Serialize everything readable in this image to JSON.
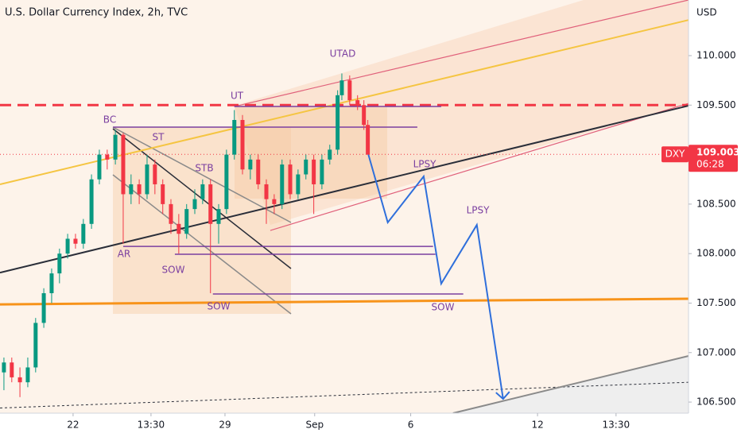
{
  "chart_data": {
    "type": "candlestick",
    "title": "U.S. Dollar Currency Index, 2h, TVC",
    "currency": "USD",
    "up_color": "#089981",
    "down_color": "#f23645",
    "xlim": [
      0,
      228
    ],
    "ylim": [
      106.388,
      110.562
    ],
    "xticks": [
      {
        "value": 24.2,
        "label": "22"
      },
      {
        "value": 50,
        "label": "13:30"
      },
      {
        "value": 74.5,
        "label": "29"
      },
      {
        "value": 104.2,
        "label": "Sep"
      },
      {
        "value": 136,
        "label": "6"
      },
      {
        "value": 178,
        "label": "12"
      },
      {
        "value": 204,
        "label": "13:30"
      }
    ],
    "yticks": [
      {
        "value": 110,
        "label": "110.000"
      },
      {
        "value": 109.5,
        "label": "109.500"
      },
      {
        "value": 109,
        "label": "109.000"
      },
      {
        "value": 108.5,
        "label": "108.500"
      },
      {
        "value": 108,
        "label": "108.000"
      },
      {
        "value": 107.5,
        "label": "107.500"
      },
      {
        "value": 107,
        "label": "107.000"
      },
      {
        "value": 106.5,
        "label": "106.500"
      }
    ],
    "last_price": {
      "symbol": "DXY",
      "value": 109.003,
      "label": "109.003",
      "countdown": "06:28",
      "color": "#f23645"
    },
    "candles": [
      [
        1.3,
        106.8,
        106.95,
        106.62,
        106.9
      ],
      [
        3.9,
        106.9,
        106.95,
        106.7,
        106.75
      ],
      [
        6.6,
        106.75,
        106.85,
        106.55,
        106.7
      ],
      [
        9.2,
        106.7,
        106.95,
        106.65,
        106.85
      ],
      [
        11.8,
        106.85,
        107.35,
        106.8,
        107.3
      ],
      [
        14.5,
        107.3,
        107.65,
        107.25,
        107.6
      ],
      [
        17.1,
        107.6,
        107.85,
        107.5,
        107.8
      ],
      [
        19.7,
        107.8,
        108.05,
        107.7,
        108.0
      ],
      [
        22.4,
        108.0,
        108.2,
        107.95,
        108.15
      ],
      [
        25.0,
        108.15,
        108.2,
        108.05,
        108.1
      ],
      [
        27.6,
        108.1,
        108.35,
        108.05,
        108.3
      ],
      [
        30.3,
        108.3,
        108.8,
        108.25,
        108.75
      ],
      [
        32.9,
        108.75,
        109.05,
        108.7,
        109.0
      ],
      [
        35.5,
        109.0,
        109.05,
        108.85,
        108.95
      ],
      [
        38.2,
        108.95,
        109.25,
        108.9,
        109.2
      ],
      [
        40.8,
        109.2,
        109.22,
        108.1,
        108.6
      ],
      [
        43.4,
        108.6,
        108.8,
        108.5,
        108.7
      ],
      [
        46.1,
        108.7,
        108.75,
        108.5,
        108.6
      ],
      [
        48.7,
        108.6,
        109.0,
        108.55,
        108.9
      ],
      [
        51.3,
        108.9,
        108.95,
        108.6,
        108.7
      ],
      [
        53.9,
        108.7,
        108.75,
        108.4,
        108.5
      ],
      [
        56.6,
        108.5,
        108.55,
        108.2,
        108.3
      ],
      [
        59.2,
        108.3,
        108.4,
        108.0,
        108.2
      ],
      [
        61.8,
        108.2,
        108.5,
        108.15,
        108.45
      ],
      [
        64.5,
        108.45,
        108.65,
        108.4,
        108.55
      ],
      [
        67.1,
        108.55,
        108.75,
        108.5,
        108.7
      ],
      [
        69.7,
        108.7,
        108.75,
        107.6,
        108.3
      ],
      [
        72.4,
        108.3,
        108.5,
        108.1,
        108.45
      ],
      [
        75.0,
        108.45,
        109.05,
        108.4,
        109.0
      ],
      [
        77.6,
        109.0,
        109.45,
        108.95,
        109.35
      ],
      [
        80.3,
        109.35,
        109.4,
        108.8,
        108.85
      ],
      [
        82.9,
        108.85,
        109.0,
        108.75,
        108.95
      ],
      [
        85.5,
        108.95,
        109.0,
        108.65,
        108.7
      ],
      [
        88.2,
        108.7,
        108.75,
        108.3,
        108.55
      ],
      [
        90.8,
        108.55,
        108.6,
        108.4,
        108.5
      ],
      [
        93.4,
        108.5,
        108.95,
        108.45,
        108.9
      ],
      [
        96.1,
        108.9,
        108.95,
        108.55,
        108.6
      ],
      [
        98.7,
        108.6,
        108.85,
        108.55,
        108.8
      ],
      [
        101.3,
        108.8,
        109.0,
        108.75,
        108.95
      ],
      [
        103.9,
        108.95,
        109.0,
        108.4,
        108.7
      ],
      [
        106.6,
        108.7,
        109.0,
        108.65,
        108.95
      ],
      [
        109.2,
        108.95,
        109.1,
        108.9,
        109.05
      ],
      [
        111.8,
        109.05,
        109.65,
        109.0,
        109.6
      ],
      [
        113.2,
        109.6,
        109.82,
        109.55,
        109.75
      ],
      [
        115.8,
        109.75,
        109.8,
        109.5,
        109.55
      ],
      [
        118.4,
        109.55,
        109.6,
        109.45,
        109.5
      ],
      [
        120.5,
        109.5,
        109.55,
        109.25,
        109.3
      ],
      [
        121.8,
        109.3,
        109.35,
        109.0,
        109.0
      ]
    ],
    "drawings": [
      {
        "points": [
          [
            0,
            108.7
          ],
          [
            228,
            110.36
          ]
        ],
        "color": "#f5c542",
        "width": 2,
        "style": "solid"
      },
      {
        "points": [
          [
            77.6,
            109.486
          ],
          [
            228,
            110.562
          ]
        ],
        "color": "#e0607a",
        "width": 1.2,
        "style": "solid"
      },
      {
        "points": [
          [
            89.5,
            108.234
          ],
          [
            228,
            109.518
          ]
        ],
        "color": "#e0607a",
        "width": 1.2,
        "style": "solid"
      },
      {
        "points": [
          [
            0,
            109.5
          ],
          [
            228,
            109.5
          ]
        ],
        "color": "#f23645",
        "width": 3,
        "style": "dashed"
      },
      {
        "points": [
          [
            0,
            107.487
          ],
          [
            228,
            107.544
          ]
        ],
        "color": "#f7931a",
        "width": 3,
        "style": "solid"
      },
      {
        "points": [
          [
            0,
            107.808
          ],
          [
            228,
            109.494
          ]
        ],
        "color": "#2a2e39",
        "width": 2,
        "style": "solid"
      },
      {
        "points": [
          [
            0,
            106.44
          ],
          [
            228,
            106.7
          ]
        ],
        "color": "#2a2e39",
        "width": 1,
        "style": "dotted"
      },
      {
        "points": [
          [
            150,
            106.388
          ],
          [
            228,
            106.966
          ]
        ],
        "color": "#8a8a8a",
        "width": 2,
        "style": "solid"
      },
      {
        "points": [
          [
            37.4,
            109.278
          ],
          [
            138.2,
            109.278
          ]
        ],
        "color": "#7b3fa0",
        "width": 1.5,
        "style": "solid"
      },
      {
        "points": [
          [
            77.6,
            109.486
          ],
          [
            146.1,
            109.486
          ]
        ],
        "color": "#7b3fa0",
        "width": 1.5,
        "style": "solid"
      },
      {
        "points": [
          [
            40.8,
            108.073
          ],
          [
            143.4,
            108.073
          ]
        ],
        "color": "#7b3fa0",
        "width": 1.5,
        "style": "solid"
      },
      {
        "points": [
          [
            57.9,
            107.993
          ],
          [
            144.2,
            107.993
          ]
        ],
        "color": "#7b3fa0",
        "width": 1.5,
        "style": "solid"
      },
      {
        "points": [
          [
            70.5,
            107.592
          ],
          [
            153.4,
            107.592
          ]
        ],
        "color": "#7b3fa0",
        "width": 1.5,
        "style": "solid"
      },
      {
        "points": [
          [
            121.8,
            109.021
          ],
          [
            128.4,
            108.315
          ],
          [
            140.3,
            108.78
          ],
          [
            146.1,
            107.696
          ],
          [
            157.9,
            108.29
          ],
          [
            166.6,
            106.532
          ]
        ],
        "color": "#2f6fdb",
        "width": 2,
        "style": "solid"
      }
    ],
    "annotations": [
      "BC",
      "ST",
      "STB",
      "AR",
      "SOW",
      "SOW",
      "UT",
      "UTAD",
      "LPSY",
      "LPSY",
      "SOW"
    ]
  }
}
